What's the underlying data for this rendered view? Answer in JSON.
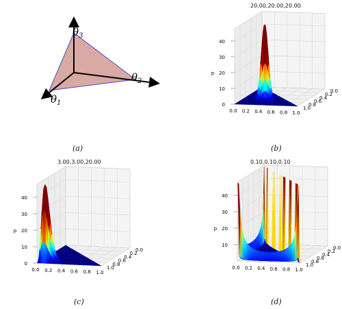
{
  "simplex": {
    "labels": [
      "θ",
      "θ",
      "θ"
    ],
    "subscripts": [
      "1",
      "2",
      "3"
    ],
    "fill": "#d9a9a3",
    "edge": "#4a4ad0"
  },
  "captions": [
    "(a)",
    "(b)",
    "(c)",
    "(d)"
  ],
  "colors": {
    "pane": "#f4f4f4",
    "grid": "#d6d6d6",
    "low": "#1a2fa8",
    "peak": "#7a0a0a"
  },
  "chart_data": [
    {
      "type": "surface3d",
      "panel": "b",
      "title": "20.00,20.00,20.00",
      "alpha": [
        20,
        20,
        20
      ],
      "zlabel": "p",
      "z_ticks": [
        "0",
        "10",
        "20",
        "30",
        "40"
      ],
      "x_ticks": [
        "0.0",
        "0.2",
        "0.4",
        "0.6",
        "0.8",
        "1.0"
      ],
      "y_ticks": [
        "0.0",
        "0.2",
        "0.4",
        "0.6",
        "0.8",
        "1.0"
      ],
      "peak": {
        "x": 0.33,
        "y": 0.33,
        "z": 46
      }
    },
    {
      "type": "surface3d",
      "panel": "c",
      "title": "3.00,3.00,20.00",
      "alpha": [
        3,
        3,
        20
      ],
      "zlabel": "p",
      "z_ticks": [
        "0",
        "10",
        "20",
        "30",
        "40"
      ],
      "x_ticks": [
        "0.0",
        "0.2",
        "0.4",
        "0.6",
        "0.8",
        "1.0"
      ],
      "y_ticks": [
        "0.0",
        "0.2",
        "0.4",
        "0.6",
        "0.8",
        "1.0"
      ],
      "peak": {
        "x": 0.12,
        "y": 0.12,
        "z": 45
      }
    },
    {
      "type": "surface3d",
      "panel": "d",
      "title": "0.10,0.10,0.10",
      "alpha": [
        0.1,
        0.1,
        0.1
      ],
      "zlabel": "p",
      "z_ticks": [
        "10",
        "20",
        "30",
        "40"
      ],
      "x_ticks": [
        "0.0",
        "0.2",
        "0.4",
        "0.6",
        "0.8",
        "1.0"
      ],
      "y_ticks": [
        "0.0",
        "0.2",
        "0.4",
        "0.6",
        "0.8",
        "1.0"
      ],
      "peak": {
        "x": 0.0,
        "y": 0.0,
        "z": 45
      }
    }
  ]
}
